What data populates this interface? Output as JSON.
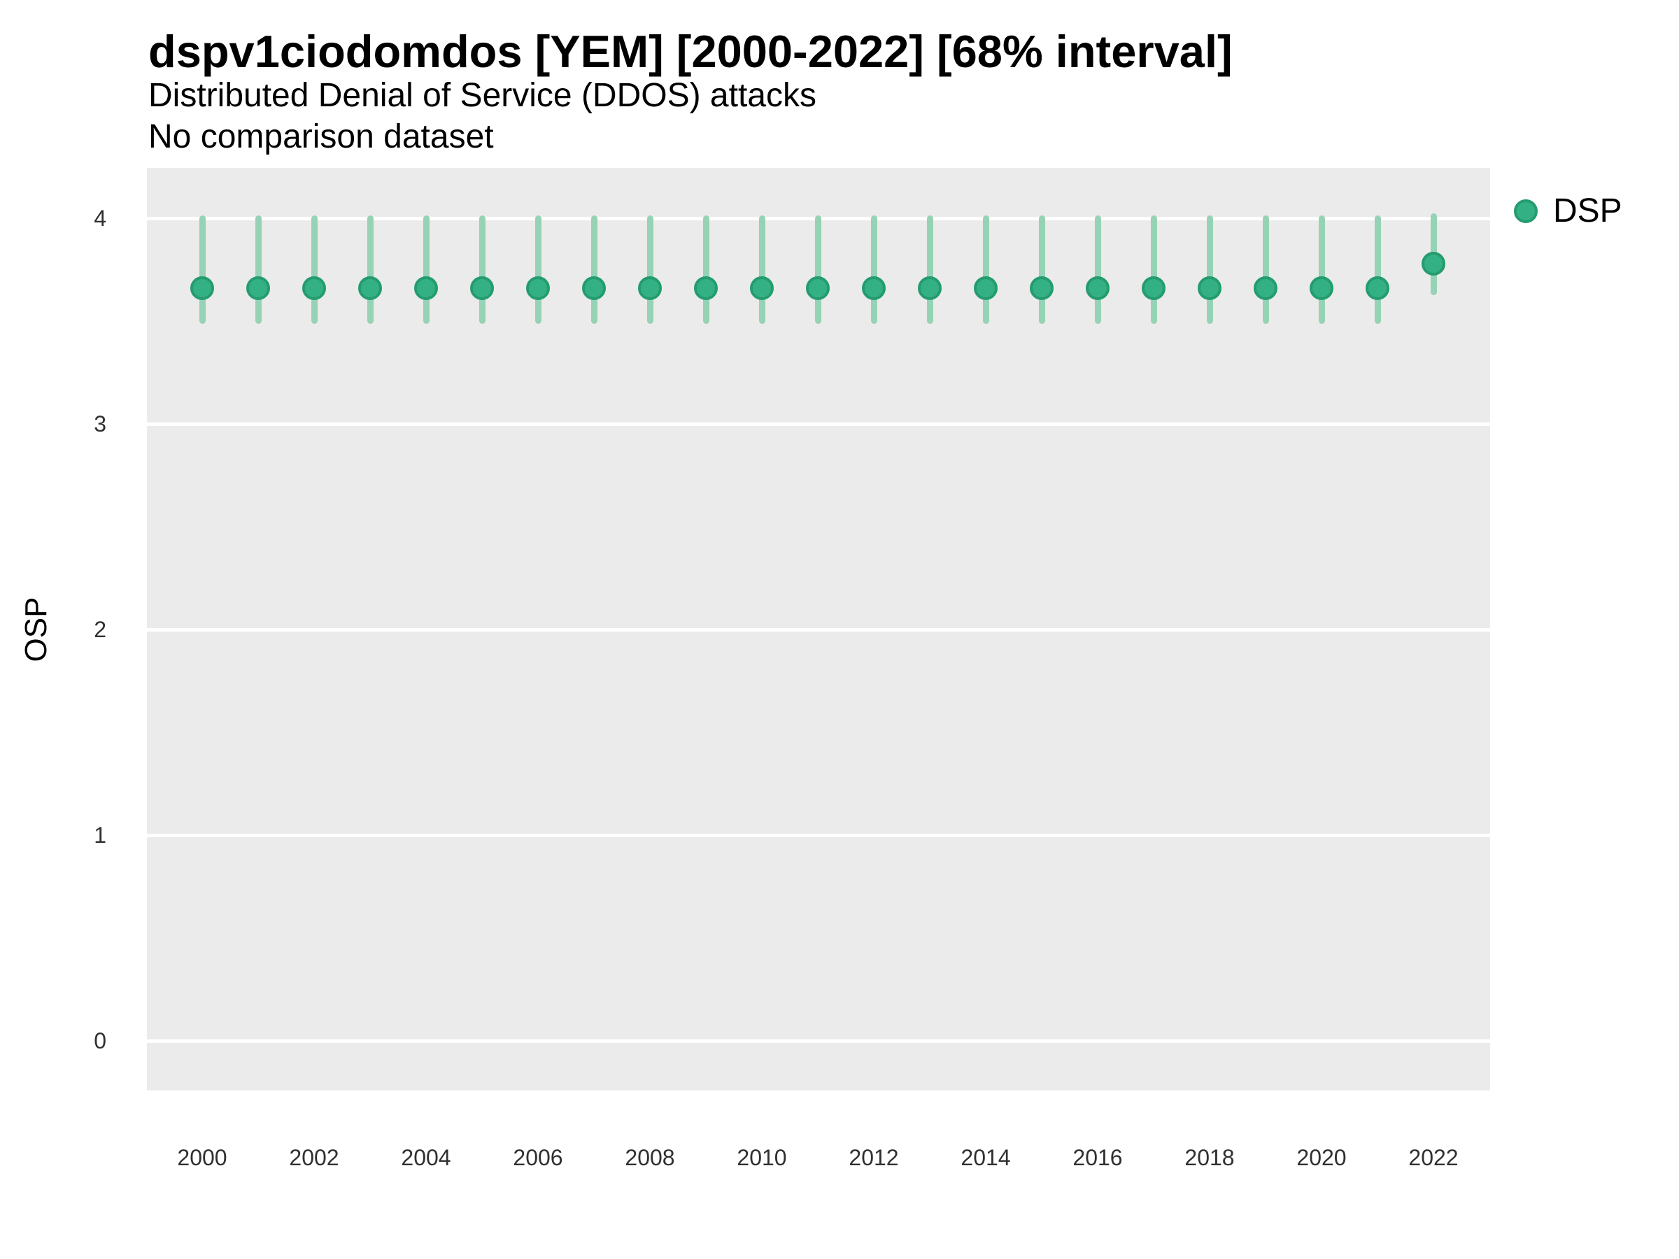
{
  "chart_data": {
    "type": "scatter",
    "subtype": "pointrange",
    "title": "dspv1ciodomdos [YEM] [2000-2022] [68% interval]",
    "subtitle": "Distributed Denial of Service (DDOS) attacks",
    "note": "No comparison dataset",
    "xlabel": "",
    "ylabel": "OSP",
    "x": [
      2000,
      2001,
      2002,
      2003,
      2004,
      2005,
      2006,
      2007,
      2008,
      2009,
      2010,
      2011,
      2012,
      2013,
      2014,
      2015,
      2016,
      2017,
      2018,
      2019,
      2020,
      2021,
      2022
    ],
    "series": [
      {
        "name": "DSP",
        "point": [
          3.66,
          3.66,
          3.66,
          3.66,
          3.66,
          3.66,
          3.66,
          3.66,
          3.66,
          3.66,
          3.66,
          3.66,
          3.66,
          3.66,
          3.66,
          3.66,
          3.66,
          3.66,
          3.66,
          3.66,
          3.66,
          3.66,
          3.78
        ],
        "lower": [
          3.5,
          3.5,
          3.5,
          3.5,
          3.5,
          3.5,
          3.5,
          3.5,
          3.5,
          3.5,
          3.5,
          3.5,
          3.5,
          3.5,
          3.5,
          3.5,
          3.5,
          3.5,
          3.5,
          3.5,
          3.5,
          3.5,
          3.64
        ],
        "upper": [
          4.0,
          4.0,
          4.0,
          4.0,
          4.0,
          4.0,
          4.0,
          4.0,
          4.0,
          4.0,
          4.0,
          4.0,
          4.0,
          4.0,
          4.0,
          4.0,
          4.0,
          4.0,
          4.0,
          4.0,
          4.0,
          4.0,
          4.01
        ]
      }
    ],
    "xticks": [
      2000,
      2002,
      2004,
      2006,
      2008,
      2010,
      2012,
      2014,
      2016,
      2018,
      2020,
      2022
    ],
    "yticks": [
      0,
      1,
      2,
      3,
      4
    ],
    "ylim": [
      -0.24,
      4.25
    ],
    "grid": "horizontal major gridlines, white on gray panel",
    "legend": {
      "position": "right-top",
      "entries": [
        {
          "label": "DSP",
          "marker": "circle"
        }
      ]
    },
    "colors": {
      "point_fill": "#33b184",
      "point_stroke": "#249c6f",
      "interval": "#96d2b5",
      "panel_bg": "#ebebeb",
      "gridline": "#ffffff",
      "text": "#000000",
      "tick_text": "#303030"
    }
  }
}
